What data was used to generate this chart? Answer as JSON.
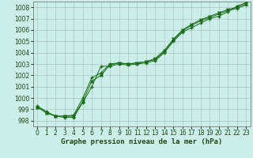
{
  "title": "Graphe pression niveau de la mer (hPa)",
  "bg_color": "#cceee8",
  "grid_color": "#b0c8c4",
  "line_color": "#1a6b1a",
  "ylim": [
    997.5,
    1008.5
  ],
  "xlim": [
    -0.5,
    23.5
  ],
  "yticks": [
    998,
    999,
    1000,
    1001,
    1002,
    1003,
    1004,
    1005,
    1006,
    1007,
    1008
  ],
  "xticks": [
    0,
    1,
    2,
    3,
    4,
    5,
    6,
    7,
    8,
    9,
    10,
    11,
    12,
    13,
    14,
    15,
    16,
    17,
    18,
    19,
    20,
    21,
    22,
    23
  ],
  "series": [
    [
      999.2,
      998.7,
      998.4,
      998.3,
      998.3,
      999.6,
      1001.0,
      1002.8,
      1002.8,
      1003.0,
      1002.9,
      1003.0,
      1003.1,
      1003.3,
      1004.0,
      1005.0,
      1005.8,
      1006.2,
      1006.6,
      1007.0,
      1007.2,
      1007.6,
      1008.1,
      1008.4
    ],
    [
      999.2,
      998.7,
      998.4,
      998.4,
      998.4,
      999.7,
      1001.5,
      1002.0,
      1002.9,
      1003.1,
      1003.0,
      1003.1,
      1003.2,
      1003.5,
      1004.2,
      1005.2,
      1006.0,
      1006.5,
      1006.9,
      1007.2,
      1007.5,
      1007.8,
      1008.0,
      1008.3
    ],
    [
      999.3,
      998.8,
      998.4,
      998.4,
      998.5,
      1000.0,
      1001.8,
      1002.2,
      1003.0,
      1003.1,
      1003.0,
      1003.1,
      1003.2,
      1003.4,
      1004.1,
      1005.1,
      1005.9,
      1006.4,
      1006.8,
      1007.1,
      1007.4,
      1007.7,
      1007.9,
      1008.2
    ]
  ],
  "series_x": [
    0,
    1,
    2,
    3,
    4,
    5,
    6,
    7,
    8,
    9,
    10,
    11,
    12,
    13,
    14,
    15,
    16,
    17,
    18,
    19,
    20,
    21,
    22,
    23
  ],
  "label_fontsize": 5.5,
  "tick_fontsize": 5.5,
  "xlabel_fontsize": 6.5
}
